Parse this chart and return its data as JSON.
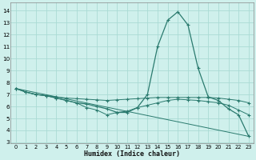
{
  "xlabel": "Humidex (Indice chaleur)",
  "bg_color": "#cff0ec",
  "grid_color": "#aadbd5",
  "line_color": "#2a7a6e",
  "xlim": [
    -0.5,
    23.5
  ],
  "ylim": [
    2.9,
    14.7
  ],
  "yticks": [
    3,
    4,
    5,
    6,
    7,
    8,
    9,
    10,
    11,
    12,
    13,
    14
  ],
  "xticks": [
    0,
    1,
    2,
    3,
    4,
    5,
    6,
    7,
    8,
    9,
    10,
    11,
    12,
    13,
    14,
    15,
    16,
    17,
    18,
    19,
    20,
    21,
    22,
    23
  ],
  "line_main": [
    7.5,
    7.2,
    7.0,
    6.9,
    6.7,
    6.5,
    6.3,
    6.2,
    6.0,
    5.8,
    5.5,
    5.5,
    5.9,
    7.0,
    11.0,
    13.2,
    13.9,
    12.8,
    9.2,
    6.8,
    6.5,
    5.8,
    5.3,
    3.5
  ],
  "line_flat1": [
    7.5,
    7.2,
    7.0,
    6.9,
    6.8,
    6.7,
    6.65,
    6.6,
    6.55,
    6.5,
    6.55,
    6.6,
    6.65,
    6.7,
    6.75,
    6.75,
    6.75,
    6.75,
    6.75,
    6.75,
    6.7,
    6.6,
    6.5,
    6.3
  ],
  "line_flat2": [
    7.5,
    7.2,
    7.0,
    6.9,
    6.7,
    6.5,
    6.3,
    5.9,
    5.7,
    5.3,
    5.5,
    5.6,
    5.9,
    6.1,
    6.3,
    6.5,
    6.6,
    6.55,
    6.5,
    6.4,
    6.3,
    6.1,
    5.7,
    5.3
  ],
  "line_diag": {
    "x": [
      0,
      23
    ],
    "y": [
      7.5,
      3.5
    ]
  }
}
